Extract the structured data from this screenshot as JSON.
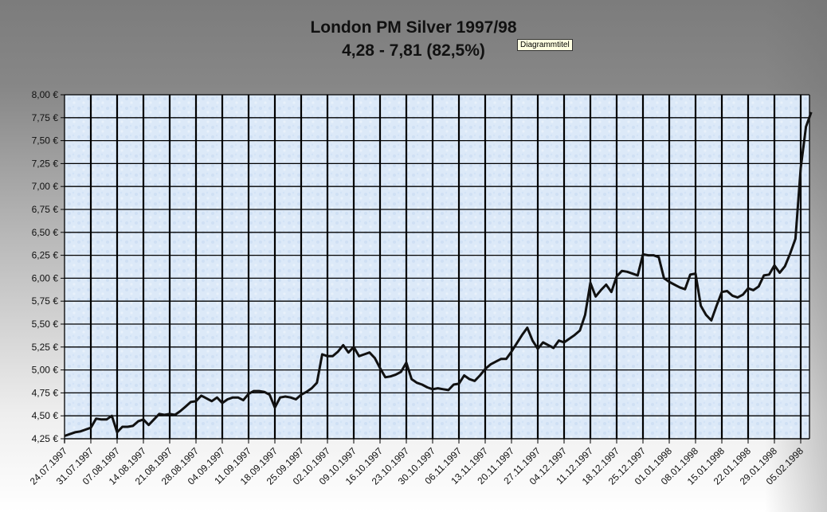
{
  "tooltip": "Diagrammtitel",
  "colors": {
    "line": "#111111",
    "plot_bg": "#dce9f8",
    "grid": "#000000"
  },
  "chart_data": {
    "type": "line",
    "title": [
      "London PM Silver 1997/98",
      "4,28 - 7,81 (82,5%)"
    ],
    "xlabel": "",
    "ylabel": "",
    "ylim": [
      4.25,
      8.0
    ],
    "y_ticks": [
      "4,25 €",
      "4,50 €",
      "4,75 €",
      "5,00 €",
      "5,25 €",
      "5,50 €",
      "5,75 €",
      "6,00 €",
      "6,25 €",
      "6,50 €",
      "6,75 €",
      "7,00 €",
      "7,25 €",
      "7,50 €",
      "7,75 €",
      "8,00 €"
    ],
    "grid": true,
    "x_note_unit": "trading days (Mon–Fri), weeks starting Thursday",
    "weeks": [
      {
        "start": "24.07.1997",
        "values": [
          4.28,
          4.3,
          4.32,
          4.33,
          4.35
        ]
      },
      {
        "start": "31.07.1997",
        "values": [
          4.37,
          4.47,
          4.46,
          4.46,
          4.5
        ]
      },
      {
        "start": "07.08.1997",
        "values": [
          4.32,
          4.38,
          4.38,
          4.39,
          4.44
        ]
      },
      {
        "start": "14.08.1997",
        "values": [
          4.46,
          4.4,
          4.46,
          4.52,
          4.51
        ]
      },
      {
        "start": "21.08.1997",
        "values": [
          4.52,
          4.51,
          4.55,
          4.6,
          4.65
        ]
      },
      {
        "start": "28.08.1997",
        "values": [
          4.66,
          4.72,
          4.69,
          4.66,
          4.7
        ]
      },
      {
        "start": "04.09.1997",
        "values": [
          4.64,
          4.68,
          4.7,
          4.7,
          4.67
        ]
      },
      {
        "start": "11.09.1997",
        "values": [
          4.74,
          4.77,
          4.77,
          4.76,
          4.73
        ]
      },
      {
        "start": "18.09.1997",
        "values": [
          4.59,
          4.7,
          4.71,
          4.7,
          4.68
        ]
      },
      {
        "start": "25.09.1997",
        "values": [
          4.73,
          4.76,
          4.8,
          4.86,
          5.17
        ]
      },
      {
        "start": "02.10.1997",
        "values": [
          5.15,
          5.15,
          5.2,
          5.27,
          5.19
        ]
      },
      {
        "start": "09.10.1997",
        "values": [
          5.25,
          5.15,
          5.17,
          5.19,
          5.13
        ]
      },
      {
        "start": "16.10.1997",
        "values": [
          5.02,
          4.92,
          4.93,
          4.95,
          4.98
        ]
      },
      {
        "start": "23.10.1997",
        "values": [
          5.08,
          4.9,
          4.86,
          4.84,
          4.81
        ]
      },
      {
        "start": "30.10.1997",
        "values": [
          4.79,
          4.8,
          4.79,
          4.78,
          4.84
        ]
      },
      {
        "start": "06.11.1997",
        "values": [
          4.85,
          4.94,
          4.9,
          4.88,
          4.94
        ]
      },
      {
        "start": "13.11.1997",
        "values": [
          5.01,
          5.06,
          5.09,
          5.12,
          5.12
        ]
      },
      {
        "start": "20.11.1997",
        "values": [
          5.2,
          5.29,
          5.38,
          5.46,
          5.32
        ]
      },
      {
        "start": "27.11.1997",
        "values": [
          5.23,
          5.3,
          5.27,
          5.24,
          5.32
        ]
      },
      {
        "start": "04.12.1997",
        "values": [
          5.3,
          5.34,
          5.38,
          5.43,
          5.6
        ]
      },
      {
        "start": "11.12.1997",
        "values": [
          5.95,
          5.8,
          5.87,
          5.93,
          5.85
        ]
      },
      {
        "start": "18.12.1997",
        "values": [
          6.02,
          6.08,
          6.07,
          6.05,
          6.03
        ]
      },
      {
        "start": "25.12.1997",
        "values": [
          6.26,
          6.25,
          6.25,
          6.23,
          6.0
        ]
      },
      {
        "start": "01.01.1998",
        "values": [
          5.96,
          5.93,
          5.9,
          5.88,
          6.04
        ]
      },
      {
        "start": "08.01.1998",
        "values": [
          6.05,
          5.7,
          5.6,
          5.54,
          5.7
        ]
      },
      {
        "start": "15.01.1998",
        "values": [
          5.85,
          5.86,
          5.81,
          5.79,
          5.82
        ]
      },
      {
        "start": "22.01.1998",
        "values": [
          5.89,
          5.87,
          5.91,
          6.03,
          6.04
        ]
      },
      {
        "start": "29.01.1998",
        "values": [
          6.14,
          6.06,
          6.13,
          6.27,
          6.43
        ]
      },
      {
        "start": "05.02.1998",
        "values": [
          7.2,
          7.65,
          7.81
        ]
      }
    ]
  }
}
